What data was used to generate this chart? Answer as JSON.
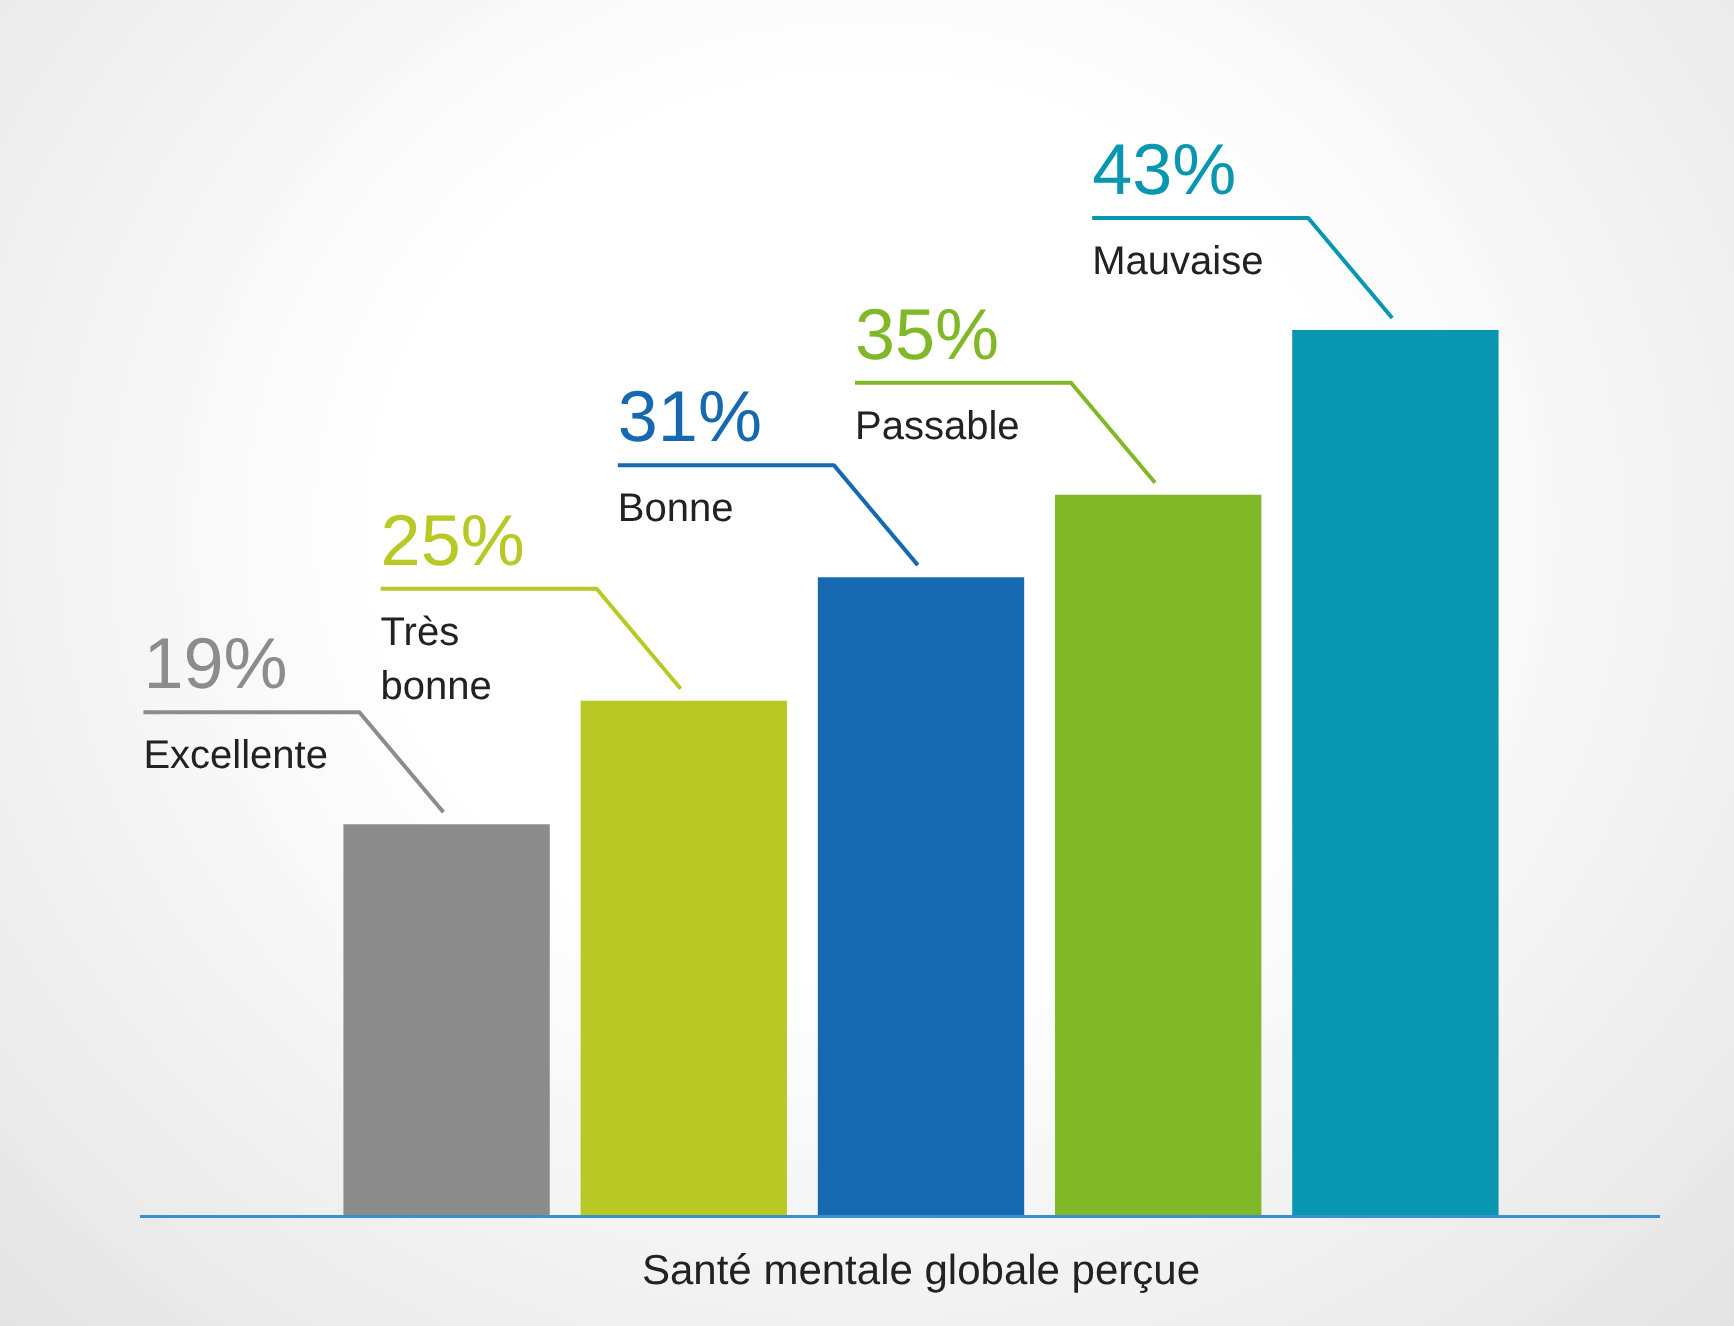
{
  "chart_data": {
    "type": "bar",
    "xlabel": "Santé mentale globale perçue",
    "categories": [
      null,
      null,
      null,
      null,
      null
    ],
    "annotations": [
      "Excellente",
      "Très bonne",
      "Bonne",
      "Passable",
      "Mauvaise"
    ],
    "values": [
      19,
      25,
      31,
      35,
      43
    ],
    "value_labels": [
      "19%",
      "25%",
      "31%",
      "35%",
      "43%"
    ],
    "colors": [
      "#8c8c8c",
      "#b8c824",
      "#1668b0",
      "#80b828",
      "#0896b0"
    ]
  }
}
